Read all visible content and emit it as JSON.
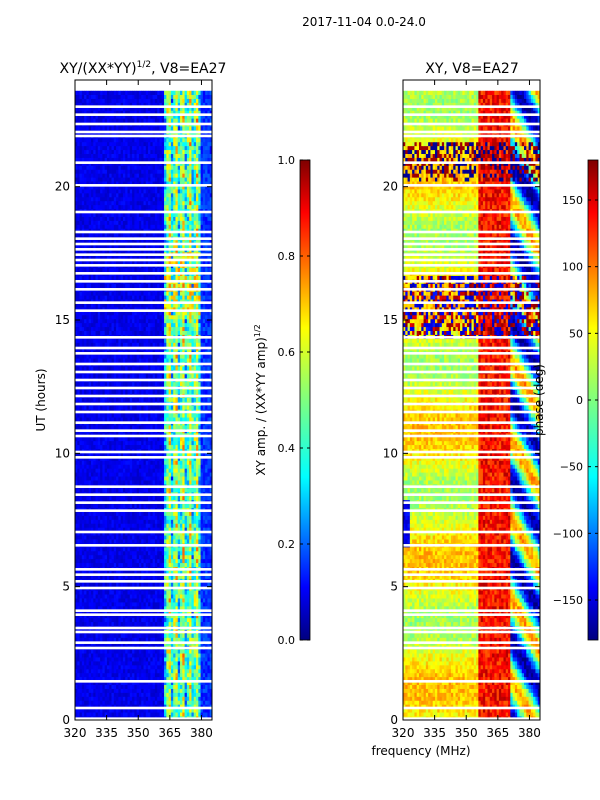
{
  "suptitle": "2017-11-04 0.0-24.0",
  "xlabel_shared": "frequency (MHz)",
  "colors": {
    "deep_blue": "#000080",
    "jet_stops": [
      "#00007f",
      "#0000ff",
      "#007fff",
      "#00ffff",
      "#7fff7f",
      "#ffff00",
      "#ff7f00",
      "#ff0000",
      "#7f0000"
    ]
  },
  "chart_data": [
    {
      "type": "heatmap",
      "title_main": "XY/(XX*YY)",
      "title_sup": "1/2",
      "title_rest": ", V8=EA27",
      "xlabel": "",
      "ylabel": "UT (hours)",
      "xlim": [
        320,
        385
      ],
      "ylim": [
        0,
        24
      ],
      "xticks": [
        320,
        335,
        350,
        365,
        380
      ],
      "xtick_labels": [
        "320",
        "335",
        "350",
        "365",
        "380"
      ],
      "yticks": [
        0,
        5,
        10,
        15,
        20
      ],
      "ytick_labels": [
        "0",
        "5",
        "10",
        "15",
        "20"
      ],
      "data_extent_hours": [
        0,
        23.6
      ],
      "bright_band_mhz": [
        362,
        380
      ],
      "colorbar": {
        "label_main": "XY amp. / (XX*YY amp)",
        "label_sup": "1/2",
        "range": [
          0.0,
          1.0
        ],
        "ticks": [
          0.0,
          0.2,
          0.4,
          0.6,
          0.8,
          1.0
        ],
        "tick_labels": [
          "0.0",
          "0.2",
          "0.4",
          "0.6",
          "0.8",
          "1.0"
        ]
      }
    },
    {
      "type": "heatmap",
      "title_main": "XY, V8=EA27",
      "xlabel": "frequency (MHz)",
      "ylabel": "",
      "xlim": [
        320,
        385
      ],
      "ylim": [
        0,
        24
      ],
      "xticks": [
        320,
        335,
        350,
        365,
        380
      ],
      "xtick_labels": [
        "320",
        "335",
        "350",
        "365",
        "380"
      ],
      "yticks": [
        0,
        5,
        10,
        15,
        20
      ],
      "ytick_labels": [
        "0",
        "5",
        "10",
        "15",
        "20"
      ],
      "data_extent_hours": [
        0,
        23.6
      ],
      "colorbar": {
        "label": "phase (deg)",
        "range": [
          -180,
          180
        ],
        "ticks": [
          -150,
          -100,
          -50,
          0,
          50,
          100,
          150
        ],
        "tick_labels": [
          "−150",
          "−100",
          "−50",
          "0",
          "50",
          "100",
          "150"
        ]
      }
    }
  ],
  "gap_hours": [
    0.05,
    0.45,
    1.45,
    2.7,
    2.9,
    3.3,
    3.45,
    3.95,
    4.1,
    4.95,
    5.2,
    5.45,
    5.65,
    6.55,
    7.05,
    7.85,
    8.15,
    8.45,
    8.75,
    9.85,
    10.05,
    10.65,
    10.85,
    11.15,
    11.55,
    11.85,
    12.15,
    12.45,
    12.75,
    13.05,
    13.35,
    13.75,
    13.95,
    14.35,
    15.35,
    15.65,
    16.15,
    16.45,
    16.75,
    17.05,
    17.25,
    17.45,
    17.65,
    17.85,
    18.05,
    18.3,
    19.05,
    20.05,
    20.9,
    21.9,
    22.05,
    22.35,
    22.7,
    23.0
  ]
}
